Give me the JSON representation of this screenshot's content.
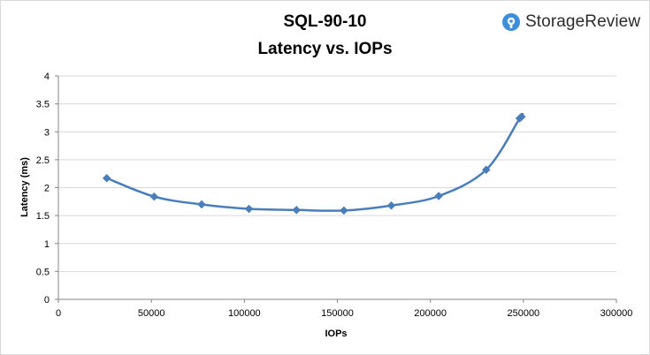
{
  "brand": {
    "name": "StorageReview",
    "icon": "storagereview-logo-icon",
    "color": "#3d8fdc"
  },
  "chart_data": {
    "type": "line",
    "title": "SQL-90-10",
    "subtitle": "Latency vs. IOPs",
    "xlabel": "IOPs",
    "ylabel": "Latency (ms)",
    "xlim": [
      0,
      300000
    ],
    "ylim": [
      0,
      4
    ],
    "x_ticks": [
      0,
      50000,
      100000,
      150000,
      200000,
      250000,
      300000
    ],
    "y_ticks": [
      0,
      0.5,
      1,
      1.5,
      2,
      2.5,
      3,
      3.5,
      4
    ],
    "x_tick_labels": [
      "0",
      "50000",
      "100000",
      "150000",
      "200000",
      "250000",
      "300000"
    ],
    "y_tick_labels": [
      "0",
      "0.5",
      "1",
      "1.5",
      "2",
      "2.5",
      "3",
      "3.5",
      "4"
    ],
    "grid": "horizontal",
    "legend": "none",
    "series": [
      {
        "color": "#4a7ebb",
        "marker": "diamond",
        "points": [
          {
            "x": 26000,
            "y": 2.17
          },
          {
            "x": 51500,
            "y": 1.84
          },
          {
            "x": 77000,
            "y": 1.7
          },
          {
            "x": 102500,
            "y": 1.62
          },
          {
            "x": 128000,
            "y": 1.6
          },
          {
            "x": 153500,
            "y": 1.59
          },
          {
            "x": 179000,
            "y": 1.68
          },
          {
            "x": 204500,
            "y": 1.85
          },
          {
            "x": 230000,
            "y": 2.32
          },
          {
            "x": 248000,
            "y": 3.24
          },
          {
            "x": 249000,
            "y": 3.27
          }
        ]
      }
    ]
  }
}
